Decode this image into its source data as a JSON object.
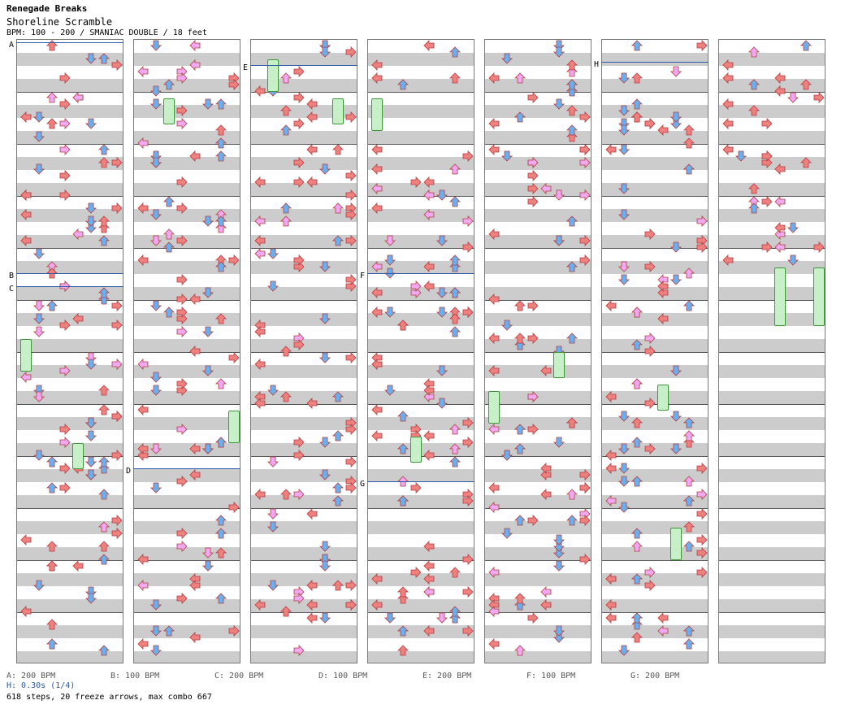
{
  "song": {
    "title": "Renegade Breaks",
    "subtitle": "Shoreline Scramble",
    "info": "BPM: 100 - 200 / SMANIAC DOUBLE / 18 feet"
  },
  "segments": [
    "A",
    "B",
    "C",
    "D",
    "E",
    "F",
    "G",
    "H"
  ],
  "legend": {
    "a": "A: 200 BPM",
    "b": "B: 100 BPM",
    "c": "C: 200 BPM",
    "d": "D: 100 BPM",
    "e": "E: 200 BPM",
    "f": "F: 100 BPM",
    "g": "G: 200 BPM"
  },
  "stop": "H: 0.30s (1/4)",
  "stats": "618 steps, 20 freeze arrows, max combo 667",
  "colors": {
    "red": "#f08080",
    "blue": "#6ab0f0",
    "pink": "#f0a8f0",
    "green": "#a0e8a0",
    "yellow": "#f0f040",
    "bpm_line": "#2a5aa8"
  }
}
